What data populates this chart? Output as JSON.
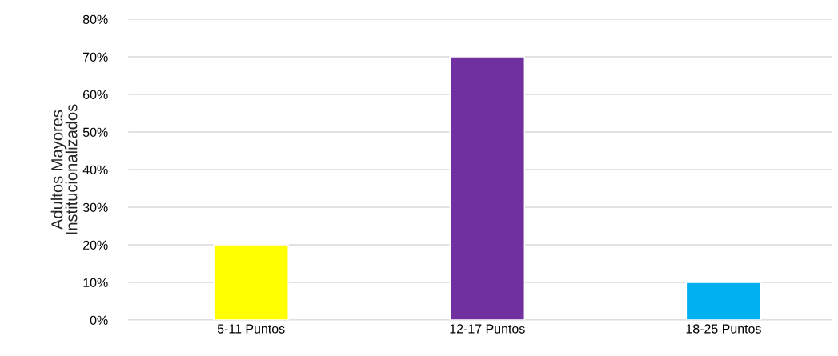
{
  "chart_data": {
    "type": "bar",
    "ylabel": "Adultos Mayores\nInstitucionalizados",
    "categories": [
      "5-11 Puntos",
      "12-17 Puntos",
      "18-25 Puntos"
    ],
    "values": [
      20,
      70,
      10
    ],
    "colors": [
      "#ffff00",
      "#7030a0",
      "#00b0f0"
    ],
    "ylim": [
      0,
      80
    ],
    "yticks": [
      {
        "value": 0,
        "label": "0%"
      },
      {
        "value": 10,
        "label": "10%"
      },
      {
        "value": 20,
        "label": "20%"
      },
      {
        "value": 30,
        "label": "30%"
      },
      {
        "value": 40,
        "label": "40%"
      },
      {
        "value": 50,
        "label": "50%"
      },
      {
        "value": 60,
        "label": "60%"
      },
      {
        "value": 70,
        "label": "70%"
      },
      {
        "value": 80,
        "label": "80%"
      }
    ],
    "grid": "y"
  }
}
